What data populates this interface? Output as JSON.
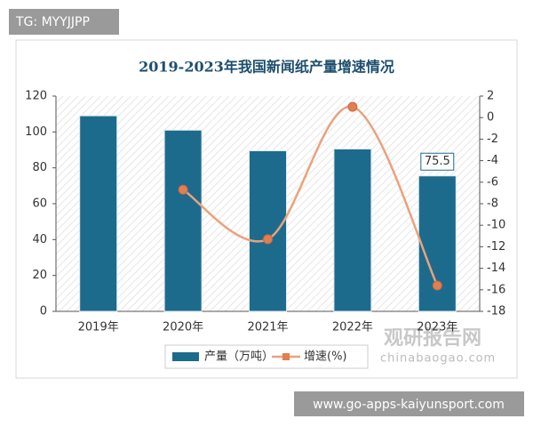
{
  "overlay": {
    "tag": "TG: MYYJJPP",
    "url": "www.go-apps-kaiyunsport.com"
  },
  "watermark": {
    "name": "观研报告网",
    "site": "chinabaogao.com"
  },
  "chart_data": {
    "type": "bar",
    "title": "2019-2023年我国新闻纸产量增速情况",
    "categories": [
      "2019年",
      "2020年",
      "2021年",
      "2022年",
      "2023年"
    ],
    "series": [
      {
        "name": "产量（万吨）",
        "color": "#1c6b8c",
        "values": [
          109,
          101,
          89.5,
          90.5,
          75.5
        ]
      },
      {
        "name": "增速(%)",
        "color": "#e9a27e",
        "type": "line",
        "axis": "y2",
        "values": [
          null,
          -6.7,
          -11.3,
          1.0,
          -15.6
        ]
      }
    ],
    "ylim": [
      0,
      120
    ],
    "yticks": [
      0,
      20,
      40,
      60,
      80,
      100,
      120
    ],
    "y2lim": [
      -18,
      2
    ],
    "y2ticks": [
      -18,
      -16,
      -14,
      -12,
      -10,
      -8,
      -6,
      -4,
      -2,
      0,
      2
    ],
    "grid": false,
    "legend": "bottom"
  }
}
